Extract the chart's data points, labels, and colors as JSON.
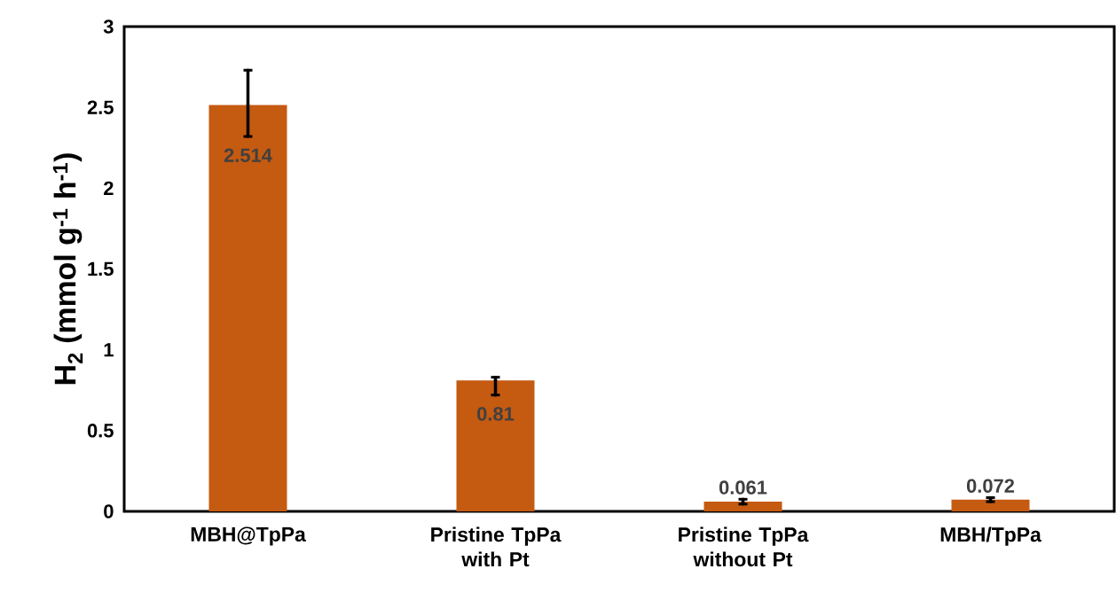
{
  "chart_data": {
    "type": "bar",
    "ylabel": "H$_{2}$ (mmol g$^{-1}$ h$^{-1}$)",
    "categories": [
      "MBH@TpPa",
      "Pristine TpPa with Pt",
      "Pristine TpPa without Pt",
      "MBH/TpPa"
    ],
    "values": [
      2.514,
      0.81,
      0.061,
      0.072
    ],
    "errors": [
      [
        2.32,
        2.73
      ],
      [
        0.72,
        0.83
      ],
      [
        0.045,
        0.075
      ],
      [
        0.06,
        0.085
      ]
    ],
    "value_labels": [
      "2.514",
      "0.81",
      "0.061",
      "0.072"
    ],
    "color": "#c55a11",
    "ylim": [
      0,
      3
    ],
    "yticks": [
      0,
      0.5,
      1,
      1.5,
      2,
      2.5,
      3
    ],
    "grid": false
  }
}
